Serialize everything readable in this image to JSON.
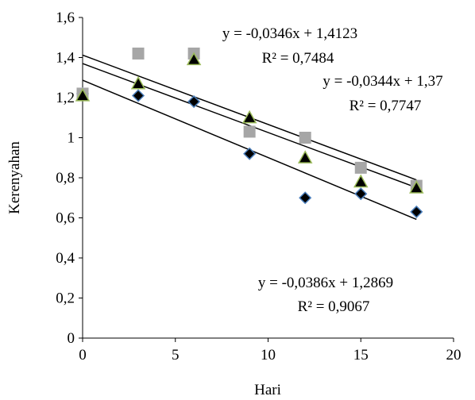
{
  "chart_data": {
    "type": "scatter",
    "xlabel": "Hari",
    "ylabel": "Kerenyahan",
    "xlim": [
      0,
      20
    ],
    "ylim": [
      0,
      1.6
    ],
    "x_ticks": [
      "0",
      "5",
      "10",
      "15",
      "20"
    ],
    "y_ticks": [
      "0",
      "0,2",
      "0,4",
      "0,6",
      "0,8",
      "1",
      "1,2",
      "1,4",
      "1,6"
    ],
    "grid": false,
    "x": [
      0,
      3,
      6,
      9,
      12,
      15,
      18
    ],
    "series": [
      {
        "marker": "diamond",
        "fill": "#000000",
        "stroke": "#4a7ebb",
        "values": [
          1.22,
          1.21,
          1.18,
          0.92,
          0.7,
          0.72,
          0.63
        ],
        "trend": {
          "slope": -0.0386,
          "intercept": 1.2869
        }
      },
      {
        "marker": "square",
        "fill": "#a6a6a6",
        "stroke": "#a6a6a6",
        "values": [
          1.22,
          1.42,
          1.42,
          1.03,
          1.0,
          0.85,
          0.76
        ],
        "trend": {
          "slope": -0.0346,
          "intercept": 1.4123
        }
      },
      {
        "marker": "triangle",
        "fill": "#000000",
        "stroke": "#9bbb59",
        "values": [
          1.21,
          1.27,
          1.39,
          1.1,
          0.9,
          0.78,
          0.75
        ],
        "trend": {
          "slope": -0.0344,
          "intercept": 1.37
        }
      }
    ],
    "annotations": [
      {
        "eq": "y = -0,0346x + 1,4123",
        "r2": "R² = 0,7484"
      },
      {
        "eq": "y = -0,0344x + 1,37",
        "r2": "R² = 0,7747"
      },
      {
        "eq": "y = -0,0386x + 1,2869",
        "r2": "R² = 0,9067"
      }
    ]
  }
}
